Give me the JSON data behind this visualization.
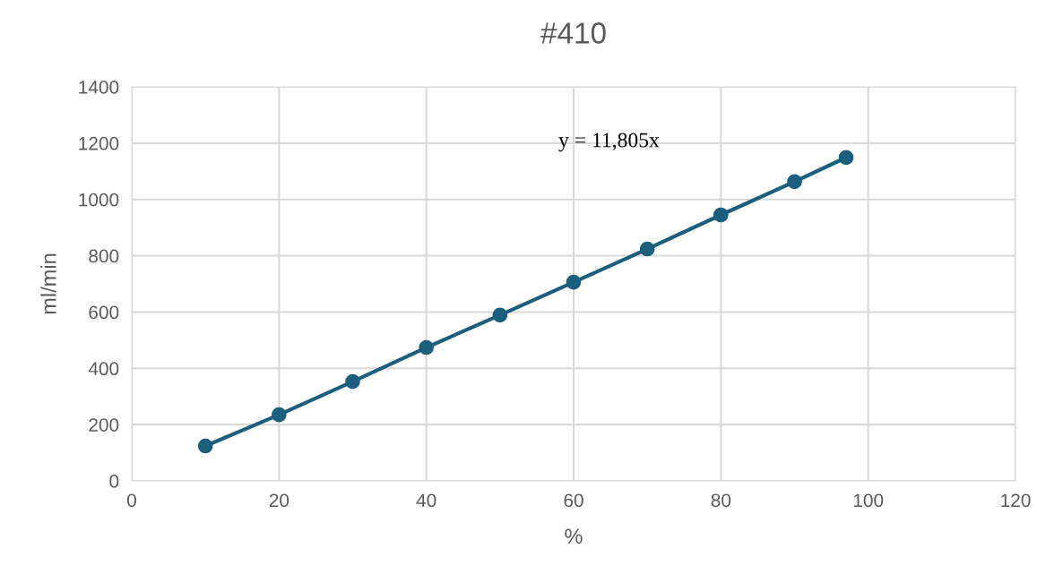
{
  "chart_data": {
    "type": "line",
    "title": "#410",
    "xlabel": "%",
    "ylabel": "ml/min",
    "x": [
      10,
      20,
      30,
      40,
      50,
      60,
      70,
      80,
      90,
      97
    ],
    "series": [
      {
        "color": "#1b5e7e",
        "values": [
          124,
          235,
          353,
          474,
          589,
          706,
          824,
          945,
          1063,
          1149
        ]
      }
    ],
    "annotations": [
      "y = 11,805x"
    ],
    "xlim": [
      0,
      120
    ],
    "xticks": [
      0,
      20,
      40,
      60,
      80,
      100,
      120
    ],
    "ylim": [
      0,
      1400
    ],
    "yticks": [
      0,
      200,
      400,
      600,
      800,
      1000,
      1200,
      1400
    ],
    "grid": true,
    "marker": "circle",
    "line_style": "solid"
  }
}
